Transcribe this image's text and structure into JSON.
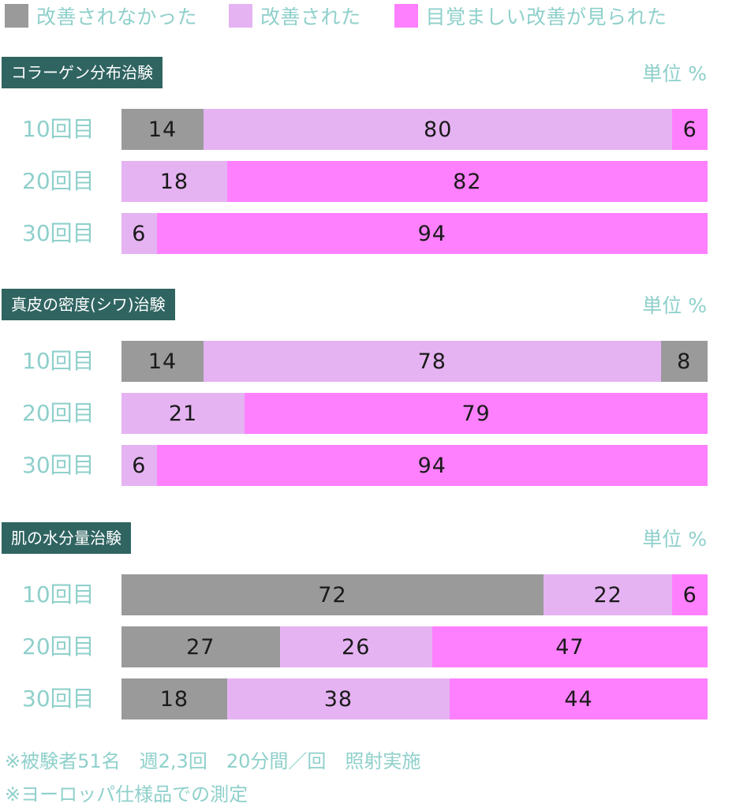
{
  "colors": {
    "not_improved": "#9a9a9a",
    "improved": "#e5b3f2",
    "remarkably_improved": "#ff80ff",
    "title_bg": "#2f6461",
    "label_text": "#8fd0cb"
  },
  "legend": [
    {
      "label": "改善されなかった",
      "color": "#9a9a9a"
    },
    {
      "label": "改善された",
      "color": "#e5b3f2"
    },
    {
      "label": "目覚ましい改善が見られた",
      "color": "#ff80ff"
    }
  ],
  "chart_data": [
    {
      "type": "bar",
      "orientation": "horizontal-stacked-100",
      "title": "コラーゲン分布治験",
      "unit_label": "単位 %",
      "categories": [
        "10回目",
        "20回目",
        "30回目"
      ],
      "rows": [
        {
          "label": "10回目",
          "segments": [
            {
              "value": 14,
              "color": "#9a9a9a"
            },
            {
              "value": 80,
              "color": "#e5b3f2"
            },
            {
              "value": 6,
              "color": "#ff80ff"
            }
          ]
        },
        {
          "label": "20回目",
          "segments": [
            {
              "value": 18,
              "color": "#e5b3f2"
            },
            {
              "value": 82,
              "color": "#ff80ff"
            }
          ]
        },
        {
          "label": "30回目",
          "segments": [
            {
              "value": 6,
              "color": "#e5b3f2"
            },
            {
              "value": 94,
              "color": "#ff80ff"
            }
          ]
        }
      ]
    },
    {
      "type": "bar",
      "orientation": "horizontal-stacked-100",
      "title": "真皮の密度(シワ)治験",
      "unit_label": "単位 %",
      "categories": [
        "10回目",
        "20回目",
        "30回目"
      ],
      "rows": [
        {
          "label": "10回目",
          "segments": [
            {
              "value": 14,
              "color": "#9a9a9a"
            },
            {
              "value": 78,
              "color": "#e5b3f2"
            },
            {
              "value": 8,
              "color": "#9a9a9a"
            }
          ]
        },
        {
          "label": "20回目",
          "segments": [
            {
              "value": 21,
              "color": "#e5b3f2"
            },
            {
              "value": 79,
              "color": "#ff80ff"
            }
          ]
        },
        {
          "label": "30回目",
          "segments": [
            {
              "value": 6,
              "color": "#e5b3f2"
            },
            {
              "value": 94,
              "color": "#ff80ff"
            }
          ]
        }
      ]
    },
    {
      "type": "bar",
      "orientation": "horizontal-stacked-100",
      "title": "肌の水分量治験",
      "unit_label": "単位 %",
      "categories": [
        "10回目",
        "20回目",
        "30回目"
      ],
      "rows": [
        {
          "label": "10回目",
          "segments": [
            {
              "value": 72,
              "color": "#9a9a9a"
            },
            {
              "value": 22,
              "color": "#e5b3f2"
            },
            {
              "value": 6,
              "color": "#ff80ff"
            }
          ]
        },
        {
          "label": "20回目",
          "segments": [
            {
              "value": 27,
              "color": "#9a9a9a"
            },
            {
              "value": 26,
              "color": "#e5b3f2"
            },
            {
              "value": 47,
              "color": "#ff80ff"
            }
          ]
        },
        {
          "label": "30回目",
          "segments": [
            {
              "value": 18,
              "color": "#9a9a9a"
            },
            {
              "value": 38,
              "color": "#e5b3f2"
            },
            {
              "value": 44,
              "color": "#ff80ff"
            }
          ]
        }
      ]
    }
  ],
  "notes": [
    "※被験者51名　週2,3回　20分間／回　照射実施",
    "※ヨーロッパ仕様品での測定"
  ]
}
